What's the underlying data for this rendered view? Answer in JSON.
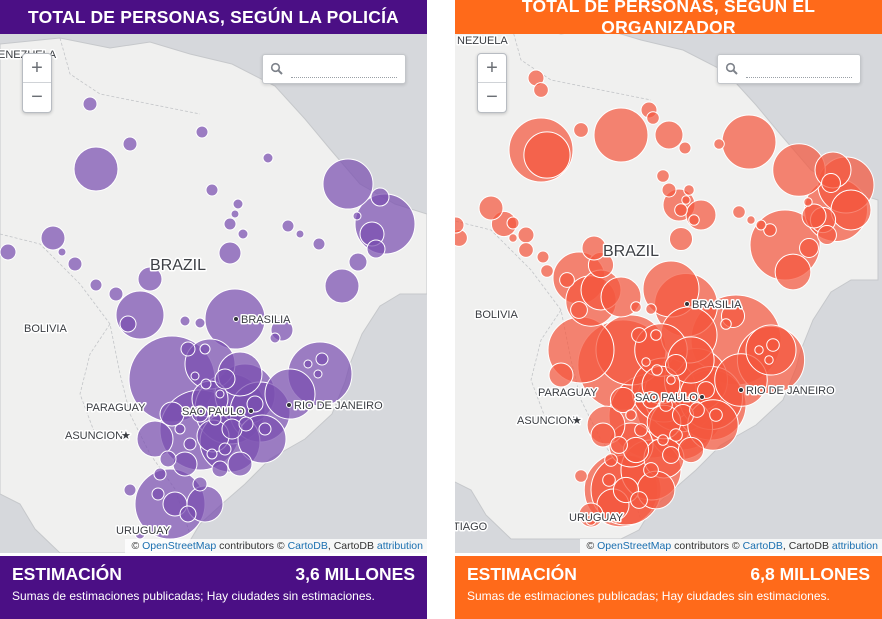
{
  "panels": [
    {
      "id": "police",
      "header_title": "TOTAL DE PERSONAS, SEGÚN LA POLICÍA",
      "header_color": "#4b0f85",
      "bubble_fill": "#7a4fb0",
      "bubble_stroke": "#ffffff",
      "map": {
        "labels": {
          "venezuela": "ENEZUELA",
          "brazil": "BRAZIL",
          "bolivia": "BOLIVIA",
          "brasilia": "BRASILIA",
          "paraguay": "PARAGUAY",
          "sao_paulo": "SAO PAULO",
          "rio": "RIO DE JANEIRO",
          "asuncion": "ASUNCION",
          "uruguay": "URUGUAY",
          "santiago": ""
        },
        "zoom_in": "+",
        "zoom_out": "−",
        "search_placeholder": "",
        "attribution": {
          "prefix": "© ",
          "osm": "OpenStreetMap",
          "contrib": " contributors © ",
          "cartodb": "CartoDB",
          "mid": ", CartoDB ",
          "attrib": "attribution"
        }
      },
      "footer": {
        "title": "ESTIMACIÓN",
        "value": "3,6 MILLONES",
        "note": "Sumas de estimaciones publicadas; Hay ciudades sin estimaciones.",
        "color": "#4b0f85"
      }
    },
    {
      "id": "organizer",
      "header_title": "TOTAL DE PERSONAS, SEGÚN EL ORGANIZADOR",
      "header_color": "#ff6a1a",
      "bubble_fill": "#f4583f",
      "bubble_stroke": "#ffffff",
      "map": {
        "labels": {
          "venezuela": "NEZUELA",
          "brazil": "BRAZIL",
          "bolivia": "BOLIVIA",
          "brasilia": "BRASILIA",
          "paraguay": "PARAGUAY",
          "sao_paulo": "SAO PAULO",
          "rio": "RIO DE JANEIRO",
          "asuncion": "ASUNCION",
          "uruguay": "URUGUAY",
          "santiago": "TIAGO"
        },
        "zoom_in": "+",
        "zoom_out": "−",
        "search_placeholder": "",
        "attribution": {
          "prefix": "© ",
          "osm": "OpenStreetMap",
          "contrib": " contributors © ",
          "cartodb": "CartoDB",
          "mid": ", CartoDB ",
          "attrib": "attribution"
        }
      },
      "footer": {
        "title": "ESTIMACIÓN",
        "value": "6,8 MILLONES",
        "note": "Sumas de estimaciones publicadas; Hay ciudades sin estimaciones.",
        "color": "#ff6a1a"
      }
    }
  ]
}
